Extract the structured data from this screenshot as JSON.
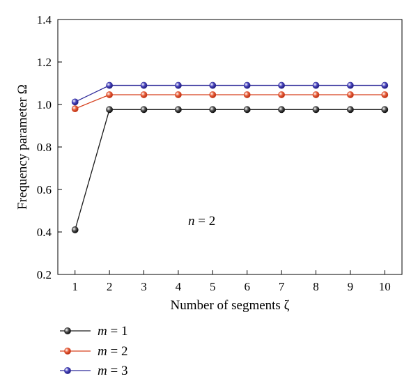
{
  "chart_data": {
    "type": "line",
    "xlabel": "Number of segments ζ",
    "ylabel": "Frequency parameter Ω",
    "annotation": {
      "var": "n",
      "rest": " = 2"
    },
    "xlim": [
      0.5,
      10.5
    ],
    "ylim": [
      0.2,
      1.4
    ],
    "x": [
      1,
      2,
      3,
      4,
      5,
      6,
      7,
      8,
      9,
      10
    ],
    "xticks": [
      "1",
      "2",
      "3",
      "4",
      "5",
      "6",
      "7",
      "8",
      "9",
      "10"
    ],
    "yticks": [
      "0.2",
      "0.4",
      "0.6",
      "0.8",
      "1.0",
      "1.2",
      "1.4"
    ],
    "grid": false,
    "legend_position": "bottom-left",
    "series": [
      {
        "name": "m = 1",
        "var": "m",
        "rest": " = 1",
        "color": "#1a1a1a",
        "values": [
          0.41,
          0.976,
          0.976,
          0.976,
          0.976,
          0.976,
          0.976,
          0.976,
          0.976,
          0.976
        ]
      },
      {
        "name": "m = 2",
        "var": "m",
        "rest": " = 2",
        "color": "#d6401e",
        "values": [
          0.98,
          1.046,
          1.046,
          1.046,
          1.046,
          1.046,
          1.046,
          1.046,
          1.046,
          1.046
        ]
      },
      {
        "name": "m = 3",
        "var": "m",
        "rest": " = 3",
        "color": "#2e2a9a",
        "values": [
          1.012,
          1.09,
          1.09,
          1.09,
          1.09,
          1.09,
          1.09,
          1.09,
          1.09,
          1.09
        ]
      }
    ]
  }
}
